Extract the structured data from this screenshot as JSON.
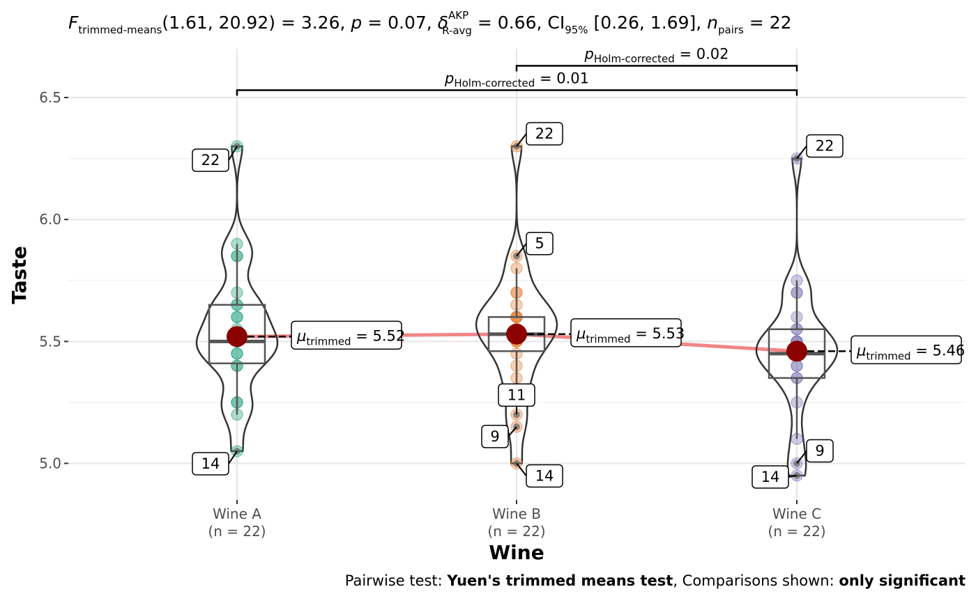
{
  "chart_data": {
    "type": "violin-box-scatter",
    "title": {
      "F": "F",
      "F_sub": "trimmed-means",
      "args": "(1.61, 20.92) = 3.26, ",
      "p": "p",
      "p_val": " = 0.07, ",
      "delta": "δ",
      "delta_sup": "AKP",
      "delta_sub": "R-avg",
      "delta_val": " = 0.66, CI",
      "ci_sub": "95%",
      "ci_val": " [0.26, 1.69], ",
      "n": "n",
      "n_sub": "pairs",
      "n_val": " = 22"
    },
    "xlabel": "Wine",
    "ylabel": "Taste",
    "ylim": [
      4.85,
      6.7
    ],
    "yticks": [
      "5.0",
      "5.5",
      "6.0",
      "6.5"
    ],
    "grid": true,
    "groups": [
      {
        "name": "Wine A",
        "n_label": "(n = 22)",
        "color": "#1b9e77",
        "values": [
          5.05,
          5.2,
          5.25,
          5.25,
          5.4,
          5.4,
          5.45,
          5.45,
          5.5,
          5.5,
          5.5,
          5.5,
          5.55,
          5.6,
          5.6,
          5.65,
          5.65,
          5.7,
          5.85,
          5.85,
          5.9,
          6.3
        ],
        "box": {
          "q1": 5.41,
          "median": 5.5,
          "q3": 5.65,
          "whisker_low": 5.2,
          "whisker_high": 5.9
        },
        "trimmed_mean": 5.52,
        "mean_text": "5.52",
        "outlier_labels": [
          {
            "id": "22",
            "value": 6.3
          },
          {
            "id": "14",
            "value": 5.05
          }
        ]
      },
      {
        "name": "Wine B",
        "n_label": "(n = 22)",
        "color": "#e47a32",
        "values": [
          5.0,
          5.15,
          5.2,
          5.35,
          5.4,
          5.45,
          5.5,
          5.5,
          5.5,
          5.55,
          5.55,
          5.6,
          5.6,
          5.6,
          5.6,
          5.65,
          5.7,
          5.7,
          5.8,
          5.85,
          6.3,
          5.3
        ],
        "box": {
          "q1": 5.46,
          "median": 5.53,
          "q3": 5.6,
          "whisker_low": 5.3,
          "whisker_high": 5.8
        },
        "trimmed_mean": 5.53,
        "mean_text": "5.53",
        "outlier_labels": [
          {
            "id": "22",
            "value": 6.3
          },
          {
            "id": "5",
            "value": 5.85
          },
          {
            "id": "11",
            "value": 5.2
          },
          {
            "id": "9",
            "value": 5.15
          },
          {
            "id": "14",
            "value": 5.0
          }
        ]
      },
      {
        "name": "Wine C",
        "n_label": "(n = 22)",
        "color": "#7570b3",
        "values": [
          4.95,
          5.0,
          5.1,
          5.25,
          5.35,
          5.35,
          5.4,
          5.4,
          5.45,
          5.45,
          5.45,
          5.45,
          5.5,
          5.5,
          5.5,
          5.55,
          5.55,
          5.6,
          5.7,
          5.7,
          5.75,
          6.25
        ],
        "box": {
          "q1": 5.35,
          "median": 5.45,
          "q3": 5.55,
          "whisker_low": 5.1,
          "whisker_high": 5.75
        },
        "trimmed_mean": 5.46,
        "mean_text": "5.46",
        "outlier_labels": [
          {
            "id": "22",
            "value": 6.25
          },
          {
            "id": "9",
            "value": 5.0
          },
          {
            "id": "14",
            "value": 4.95
          }
        ]
      }
    ],
    "mean_label_prefix": "μ",
    "mean_label_sub": "trimmed",
    "mean_label_eq": " = ",
    "mean_line_color": "#f08080",
    "mean_point_color": "#8b0000",
    "pairwise": [
      {
        "from": 1,
        "to": 2,
        "y": 6.63,
        "p_label": "p",
        "p_sub": "Holm-corrected",
        "p_val": " = 0.02"
      },
      {
        "from": 0,
        "to": 2,
        "y": 6.53,
        "p_label": "p",
        "p_sub": "Holm-corrected",
        "p_val": " = 0.01"
      }
    ],
    "caption": {
      "pre": "Pairwise test: ",
      "test": "Yuen's trimmed means test",
      "mid": ", Comparisons shown: ",
      "shown": "only significant"
    }
  }
}
